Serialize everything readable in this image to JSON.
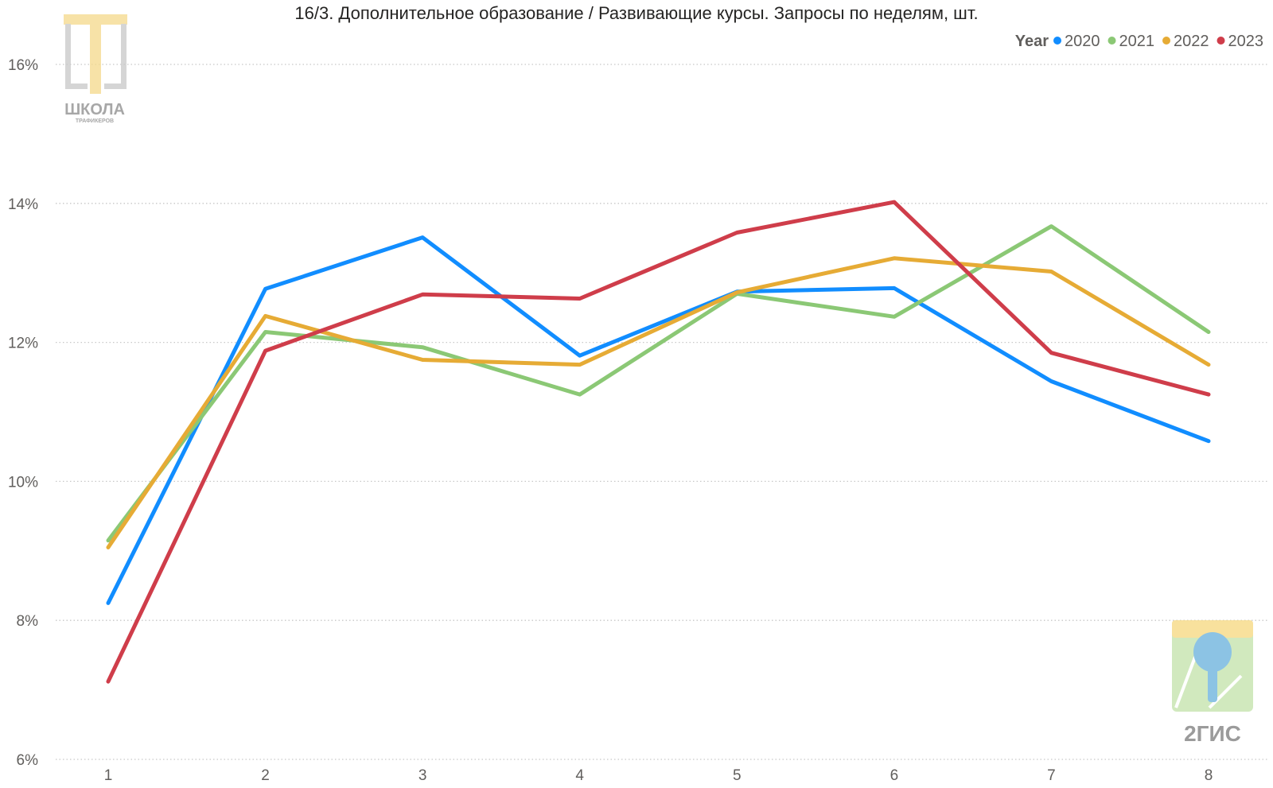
{
  "chart_data": {
    "type": "line",
    "title": "16/3. Дополнительное образование / Развивающие курсы. Запросы по неделям, шт.",
    "legend_title": "Year",
    "legend_position": "top-right",
    "grid": true,
    "x": [
      1,
      2,
      3,
      4,
      5,
      6,
      7,
      8
    ],
    "ylim": [
      6,
      16
    ],
    "yticks": [
      "6%",
      "8%",
      "10%",
      "12%",
      "14%",
      "16%"
    ],
    "ytick_values": [
      6,
      8,
      10,
      12,
      14,
      16
    ],
    "series": [
      {
        "name": "2020",
        "color": "#118dff",
        "values": [
          8.25,
          12.77,
          13.51,
          11.81,
          12.73,
          12.78,
          11.44,
          10.58
        ]
      },
      {
        "name": "2021",
        "color": "#8bc875",
        "values": [
          9.15,
          12.15,
          11.93,
          11.25,
          12.7,
          12.37,
          13.67,
          12.15
        ]
      },
      {
        "name": "2022",
        "color": "#e6ab35",
        "values": [
          9.05,
          12.38,
          11.75,
          11.68,
          12.72,
          13.21,
          13.02,
          11.68
        ]
      },
      {
        "name": "2023",
        "color": "#cf3d4a",
        "values": [
          7.12,
          11.88,
          12.69,
          12.63,
          13.58,
          14.02,
          11.85,
          11.25
        ]
      }
    ]
  },
  "logos": {
    "school": {
      "line1": "ШКОЛА",
      "line2": "ТРАФИКЕРОВ"
    },
    "gis": {
      "text": "2ГИС"
    }
  }
}
